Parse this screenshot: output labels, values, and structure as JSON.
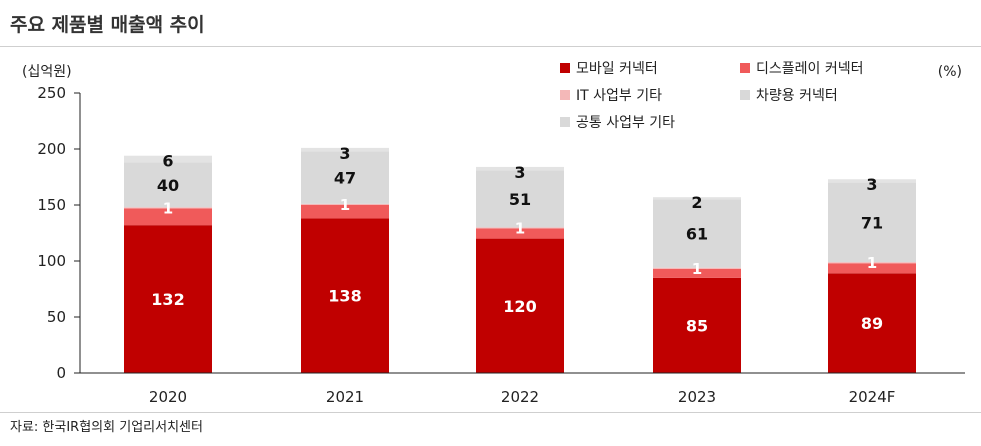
{
  "title": "주요 제품별 매출액 추이",
  "source": "자료: 한국IR협의회 기업리서치센터",
  "chart_data": {
    "type": "bar",
    "stacked": true,
    "categories": [
      "2020",
      "2021",
      "2022",
      "2023",
      "2024F"
    ],
    "series": [
      {
        "name": "모바일 커넥터",
        "color": "#c00000",
        "values": [
          132,
          138,
          120,
          85,
          89
        ]
      },
      {
        "name": "디스플레이 커넥터",
        "color": "#f05a5a",
        "values": [
          15,
          12,
          9,
          8,
          9
        ]
      },
      {
        "name": "IT 사업부 기타",
        "color": "#f4b8b8",
        "values": [
          1,
          1,
          1,
          1,
          1
        ]
      },
      {
        "name": "차량용 커넥터",
        "color": "#d9d9d9",
        "values": [
          40,
          47,
          51,
          61,
          71
        ]
      },
      {
        "name": "공통 사업부 기타",
        "color": "#e3e3e3",
        "values": [
          6,
          3,
          3,
          2,
          3
        ]
      }
    ],
    "ylabel": "(십억원)",
    "unit_right": "(%)",
    "ylim": [
      0,
      250
    ],
    "yticks": [
      0,
      50,
      100,
      150,
      200,
      250
    ],
    "data_labels": {
      "mobile": [
        "132",
        "138",
        "120",
        "85",
        "89"
      ],
      "it_other": [
        "1",
        "1",
        "1",
        "1",
        "1"
      ],
      "vehicle": [
        "40",
        "47",
        "51",
        "61",
        "71"
      ],
      "common_other": [
        "6",
        "3",
        "3",
        "2",
        "3"
      ]
    }
  }
}
